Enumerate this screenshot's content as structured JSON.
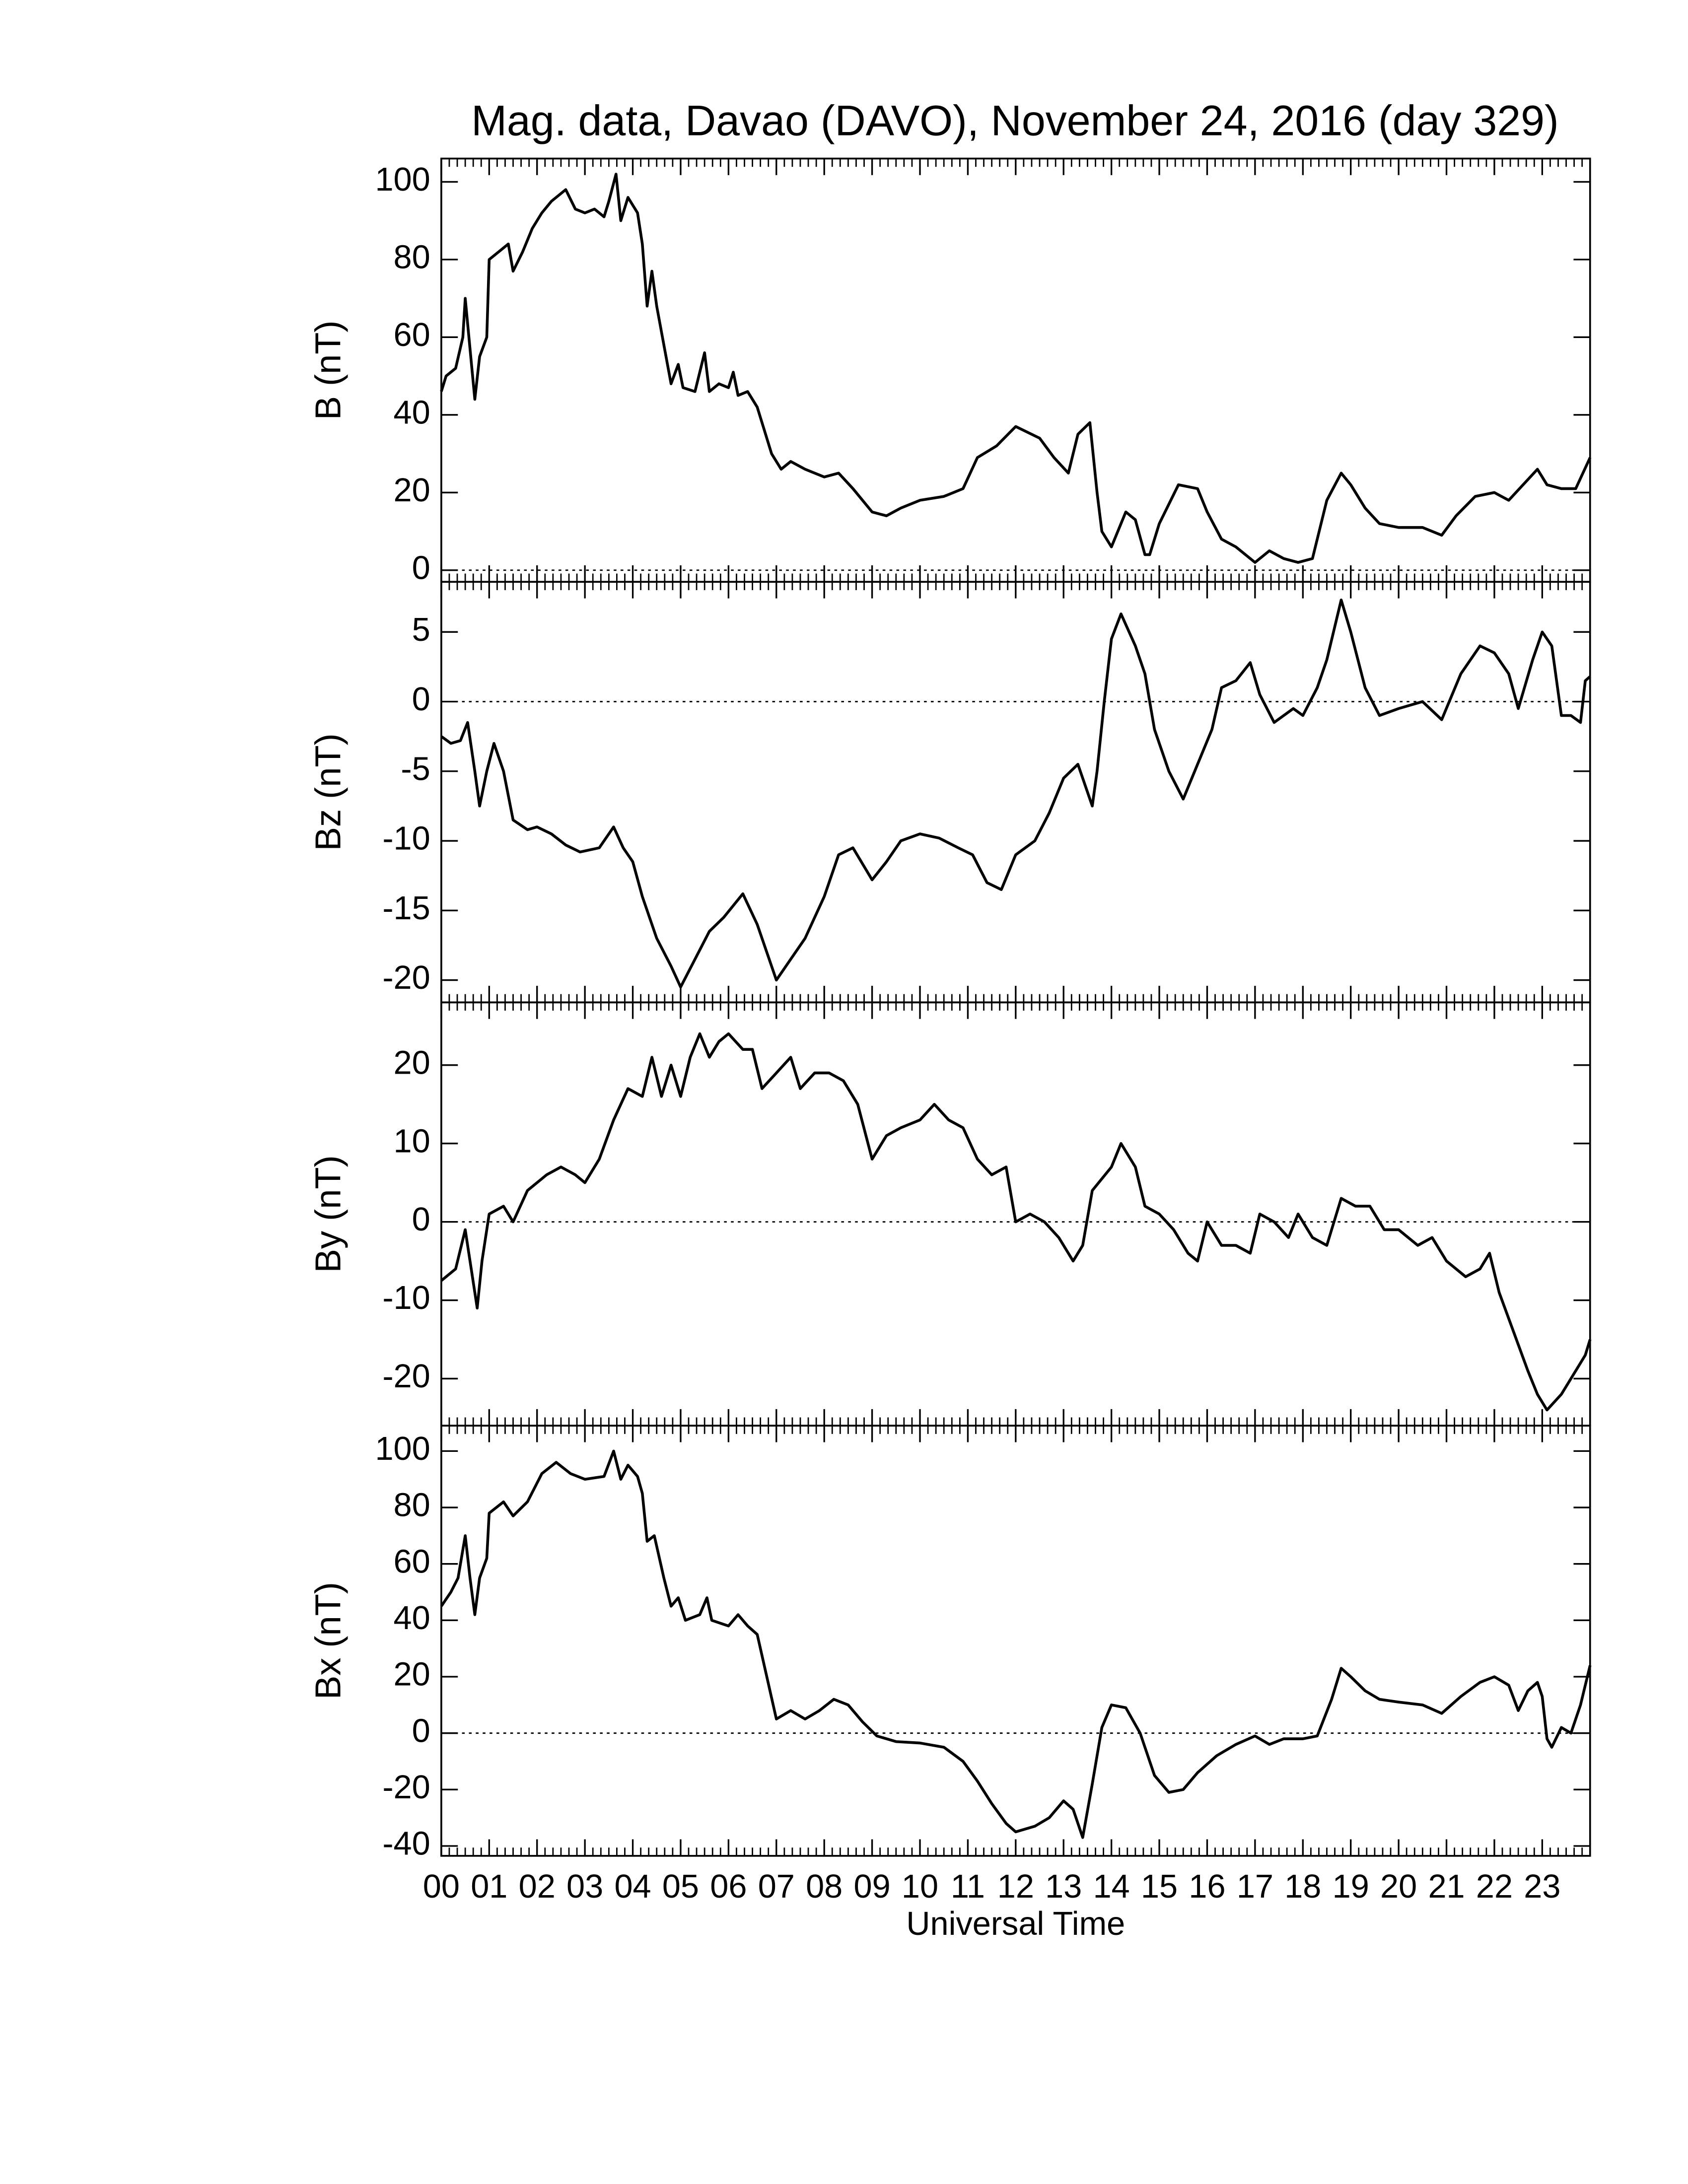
{
  "chart_data": [
    {
      "type": "line",
      "title": "Mag. data, Davao (DAVO), November 24, 2016 (day 329)",
      "ylabel": "B (nT)",
      "color": "#000000",
      "zero_line": true,
      "xlim": [
        0,
        24
      ],
      "ylim": [
        -3,
        106
      ],
      "yticks": [
        0,
        20,
        40,
        60,
        80,
        100
      ],
      "x": [
        0,
        0.1,
        0.3,
        0.45,
        0.5,
        0.6,
        0.7,
        0.8,
        0.95,
        1.0,
        1.2,
        1.4,
        1.5,
        1.7,
        1.9,
        2.1,
        2.3,
        2.6,
        2.8,
        3.0,
        3.2,
        3.4,
        3.5,
        3.65,
        3.75,
        3.9,
        4.1,
        4.2,
        4.3,
        4.4,
        4.5,
        4.65,
        4.8,
        4.95,
        5.05,
        5.3,
        5.5,
        5.6,
        5.8,
        6.0,
        6.1,
        6.2,
        6.4,
        6.6,
        6.9,
        7.1,
        7.3,
        7.6,
        8.0,
        8.3,
        8.6,
        9.0,
        9.3,
        9.6,
        10.0,
        10.5,
        10.9,
        11.2,
        11.6,
        12.0,
        12.5,
        12.8,
        13.1,
        13.3,
        13.55,
        13.7,
        13.8,
        14.0,
        14.3,
        14.5,
        14.7,
        14.8,
        15.0,
        15.4,
        15.8,
        16.0,
        16.3,
        16.6,
        17.0,
        17.3,
        17.6,
        17.9,
        18.2,
        18.5,
        18.8,
        19.0,
        19.3,
        19.6,
        20.0,
        20.5,
        20.9,
        21.2,
        21.6,
        22.0,
        22.3,
        22.6,
        22.9,
        23.1,
        23.4,
        23.7,
        24.0
      ],
      "values": [
        46,
        50,
        52,
        60,
        70,
        57,
        44,
        55,
        60,
        80,
        82,
        84,
        77,
        82,
        88,
        92,
        95,
        98,
        93,
        92,
        93,
        91,
        95,
        102,
        90,
        96,
        92,
        84,
        68,
        77,
        68,
        58,
        48,
        53,
        47,
        46,
        56,
        46,
        48,
        47,
        51,
        45,
        46,
        42,
        30,
        26,
        28,
        26,
        24,
        25,
        21,
        15,
        14,
        16,
        18,
        19,
        21,
        29,
        32,
        37,
        34,
        29,
        25,
        35,
        38,
        20,
        10,
        6,
        15,
        13,
        4,
        4,
        12,
        22,
        21,
        15,
        8,
        6,
        2,
        5,
        3,
        2,
        3,
        18,
        25,
        22,
        16,
        12,
        11,
        11,
        9,
        14,
        19,
        20,
        18,
        22,
        26,
        22,
        21,
        21,
        29
      ]
    },
    {
      "type": "line",
      "ylabel": "Bz (nT)",
      "color": "#000000",
      "zero_line": true,
      "xlim": [
        0,
        24
      ],
      "ylim": [
        -21.6,
        8.6
      ],
      "yticks": [
        -20,
        -15,
        -10,
        -5,
        0,
        5
      ],
      "x": [
        0,
        0.2,
        0.4,
        0.55,
        0.7,
        0.8,
        0.95,
        1.1,
        1.3,
        1.5,
        1.8,
        2.0,
        2.3,
        2.6,
        2.9,
        3.3,
        3.6,
        3.8,
        4.0,
        4.2,
        4.5,
        4.8,
        5.0,
        5.3,
        5.6,
        5.9,
        6.3,
        6.6,
        6.9,
        7.0,
        7.3,
        7.6,
        8.0,
        8.3,
        8.6,
        9.0,
        9.3,
        9.6,
        10.0,
        10.4,
        10.8,
        11.1,
        11.4,
        11.7,
        12.0,
        12.4,
        12.7,
        13.0,
        13.3,
        13.6,
        13.7,
        13.85,
        14.0,
        14.2,
        14.5,
        14.7,
        14.9,
        15.2,
        15.5,
        15.8,
        16.1,
        16.3,
        16.6,
        16.9,
        17.1,
        17.4,
        17.8,
        18.0,
        18.3,
        18.5,
        18.8,
        19.0,
        19.3,
        19.6,
        20.0,
        20.5,
        20.9,
        21.3,
        21.7,
        22.0,
        22.3,
        22.5,
        22.8,
        23.0,
        23.2,
        23.4,
        23.6,
        23.8,
        23.9,
        24.0
      ],
      "values": [
        -2.5,
        -3,
        -2.8,
        -1.5,
        -5,
        -7.5,
        -5,
        -3,
        -5,
        -8.5,
        -9.2,
        -9,
        -9.5,
        -10.3,
        -10.8,
        -10.5,
        -9,
        -10.5,
        -11.5,
        -14,
        -17,
        -19,
        -20.5,
        -18.5,
        -16.5,
        -15.5,
        -13.8,
        -16,
        -19,
        -20,
        -18.5,
        -17,
        -14,
        -11,
        -10.5,
        -12.8,
        -11.5,
        -10,
        -9.5,
        -9.8,
        -10.5,
        -11,
        -13,
        -13.5,
        -11,
        -10,
        -8,
        -5.5,
        -4.5,
        -7.5,
        -5,
        0,
        4.5,
        6.3,
        4,
        2,
        -2,
        -5,
        -7,
        -4.5,
        -2,
        1,
        1.5,
        2.8,
        0.5,
        -1.5,
        -0.5,
        -1,
        1,
        3,
        7.3,
        5,
        1,
        -1,
        -0.5,
        0,
        -1.3,
        2,
        4,
        3.5,
        2,
        -0.5,
        3,
        5,
        4,
        -1,
        -1,
        -1.5,
        1.5,
        1.8
      ]
    },
    {
      "type": "line",
      "ylabel": "By (nT)",
      "color": "#000000",
      "zero_line": true,
      "xlim": [
        0,
        24
      ],
      "ylim": [
        -26,
        28
      ],
      "yticks": [
        -20,
        -10,
        0,
        10,
        20
      ],
      "x": [
        0,
        0.3,
        0.5,
        0.6,
        0.75,
        0.85,
        1.0,
        1.3,
        1.5,
        1.8,
        2.2,
        2.5,
        2.8,
        3.0,
        3.3,
        3.6,
        3.9,
        4.2,
        4.4,
        4.6,
        4.8,
        5.0,
        5.2,
        5.4,
        5.6,
        5.8,
        6.0,
        6.3,
        6.5,
        6.7,
        7.0,
        7.3,
        7.5,
        7.8,
        8.1,
        8.4,
        8.7,
        9.0,
        9.3,
        9.6,
        10.0,
        10.3,
        10.6,
        10.9,
        11.2,
        11.5,
        11.8,
        12.0,
        12.3,
        12.6,
        12.9,
        13.2,
        13.4,
        13.6,
        14.0,
        14.2,
        14.5,
        14.7,
        15.0,
        15.3,
        15.6,
        15.8,
        16.0,
        16.3,
        16.6,
        16.9,
        17.1,
        17.4,
        17.7,
        17.9,
        18.2,
        18.5,
        18.8,
        19.1,
        19.4,
        19.7,
        20.0,
        20.4,
        20.7,
        21.0,
        21.4,
        21.7,
        21.9,
        22.1,
        22.4,
        22.7,
        22.9,
        23.1,
        23.4,
        23.7,
        23.9,
        24.0
      ],
      "values": [
        -7.5,
        -6,
        -1,
        -5,
        -11,
        -5,
        1,
        2,
        0,
        4,
        6,
        7,
        6,
        5,
        8,
        13,
        17,
        16,
        21,
        16,
        20,
        16,
        21,
        24,
        21,
        23,
        24,
        22,
        22,
        17,
        19,
        21,
        17,
        19,
        19,
        18,
        15,
        8,
        11,
        12,
        13,
        15,
        13,
        12,
        8,
        6,
        7,
        0,
        1,
        0,
        -2,
        -5,
        -3,
        4,
        7,
        10,
        7,
        2,
        1,
        -1,
        -4,
        -5,
        0,
        -3,
        -3,
        -4,
        1,
        0,
        -2,
        1,
        -2,
        -3,
        3,
        2,
        2,
        -1,
        -1,
        -3,
        -2,
        -5,
        -7,
        -6,
        -4,
        -9,
        -14,
        -19,
        -22,
        -24,
        -22,
        -19,
        -17,
        -15
      ]
    },
    {
      "type": "line",
      "ylabel": "Bx (nT)",
      "xlabel": "Universal Time",
      "color": "#000000",
      "zero_line": true,
      "xlim": [
        0,
        24
      ],
      "ylim": [
        -43.5,
        109
      ],
      "yticks": [
        -40,
        -20,
        0,
        20,
        40,
        60,
        80,
        100
      ],
      "xminor": 6,
      "xticks": [
        {
          "value": 0,
          "label": "00"
        },
        {
          "value": 1,
          "label": "01"
        },
        {
          "value": 2,
          "label": "02"
        },
        {
          "value": 3,
          "label": "03"
        },
        {
          "value": 4,
          "label": "04"
        },
        {
          "value": 5,
          "label": "05"
        },
        {
          "value": 6,
          "label": "06"
        },
        {
          "value": 7,
          "label": "07"
        },
        {
          "value": 8,
          "label": "08"
        },
        {
          "value": 9,
          "label": "09"
        },
        {
          "value": 10,
          "label": "10"
        },
        {
          "value": 11,
          "label": "11"
        },
        {
          "value": 12,
          "label": "12"
        },
        {
          "value": 13,
          "label": "13"
        },
        {
          "value": 14,
          "label": "14"
        },
        {
          "value": 15,
          "label": "15"
        },
        {
          "value": 16,
          "label": "16"
        },
        {
          "value": 17,
          "label": "17"
        },
        {
          "value": 18,
          "label": "18"
        },
        {
          "value": 19,
          "label": "19"
        },
        {
          "value": 20,
          "label": "20"
        },
        {
          "value": 21,
          "label": "21"
        },
        {
          "value": 22,
          "label": "22"
        },
        {
          "value": 23,
          "label": "23"
        }
      ],
      "x": [
        0,
        0.2,
        0.35,
        0.5,
        0.6,
        0.7,
        0.8,
        0.95,
        1.0,
        1.3,
        1.5,
        1.8,
        2.1,
        2.4,
        2.7,
        3.0,
        3.4,
        3.6,
        3.75,
        3.9,
        4.1,
        4.2,
        4.3,
        4.45,
        4.65,
        4.8,
        4.95,
        5.1,
        5.4,
        5.55,
        5.65,
        6.0,
        6.2,
        6.4,
        6.6,
        6.8,
        7.0,
        7.3,
        7.6,
        7.9,
        8.2,
        8.5,
        8.8,
        9.1,
        9.5,
        10.0,
        10.5,
        10.9,
        11.2,
        11.5,
        11.8,
        12.0,
        12.4,
        12.7,
        13.0,
        13.2,
        13.4,
        13.6,
        13.8,
        14.0,
        14.3,
        14.6,
        14.9,
        15.2,
        15.5,
        15.8,
        16.2,
        16.6,
        17.0,
        17.3,
        17.6,
        18.0,
        18.3,
        18.6,
        18.8,
        19.0,
        19.3,
        19.6,
        20.0,
        20.5,
        20.9,
        21.3,
        21.7,
        22.0,
        22.3,
        22.5,
        22.7,
        22.9,
        23.0,
        23.1,
        23.2,
        23.4,
        23.6,
        23.8,
        24.0
      ],
      "values": [
        45,
        50,
        55,
        70,
        55,
        42,
        55,
        62,
        78,
        82,
        77,
        82,
        92,
        96,
        92,
        90,
        91,
        100,
        90,
        95,
        91,
        85,
        68,
        70,
        55,
        45,
        48,
        40,
        42,
        48,
        40,
        38,
        42,
        38,
        35,
        20,
        5,
        8,
        5,
        8,
        12,
        10,
        4,
        -1,
        -3,
        -3.5,
        -5,
        -10,
        -17,
        -25,
        -32,
        -35,
        -33,
        -30,
        -24,
        -27,
        -37,
        -18,
        2,
        10,
        9,
        0,
        -15,
        -21,
        -20,
        -14,
        -8,
        -4,
        -1,
        -4,
        -2,
        -2,
        -1,
        12,
        23,
        20,
        15,
        12,
        11,
        10,
        7,
        13,
        18,
        20,
        17,
        8,
        15,
        18,
        13,
        -2,
        -5,
        2,
        0,
        10,
        24
      ]
    }
  ]
}
